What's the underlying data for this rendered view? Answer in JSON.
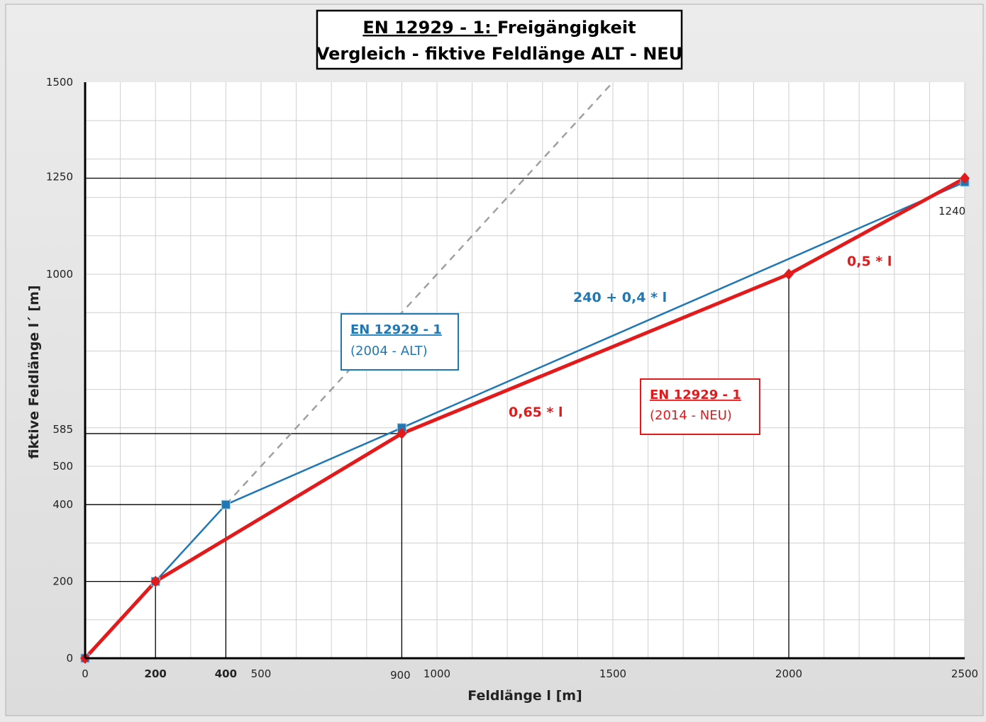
{
  "title_line1_underlined": "EN 12929 - 1: ",
  "title_line1_rest": "Freigängigkeit",
  "title_line2": "Vergleich - fiktive Feldlänge ALT - NEU",
  "chart_data": {
    "type": "line",
    "xlabel": "Feldlänge l [m]",
    "ylabel": "fiktive Feldlänge l´ [m]",
    "xlim": [
      0,
      2500
    ],
    "ylim": [
      0,
      1500
    ],
    "x_ticks": [
      0,
      200,
      400,
      500,
      900,
      1000,
      1500,
      2000,
      2500
    ],
    "y_ticks": [
      0,
      200,
      400,
      500,
      585,
      1000,
      1250,
      1500
    ],
    "grid": true,
    "grid_x_step": 100,
    "grid_y_step": 100,
    "series": [
      {
        "name": "EN 12929 - 1 (2004 - ALT)",
        "color": "#1f77b4",
        "marker": "square",
        "x": [
          0,
          200,
          400,
          900,
          2500
        ],
        "y": [
          0,
          200,
          400,
          600,
          1240
        ]
      },
      {
        "name": "EN 12929 - 1 (2014 - NEU)",
        "color": "#e31a1c",
        "marker": "diamond",
        "x": [
          0,
          200,
          900,
          2000,
          2500
        ],
        "y": [
          0,
          200,
          585,
          1000,
          1250
        ]
      }
    ],
    "identity_line": {
      "style": "dashed",
      "color": "#a0a0a0",
      "x": [
        400,
        1500
      ],
      "y": [
        400,
        1500
      ]
    },
    "reference_lines": [
      {
        "axis": "y",
        "value": 200,
        "to_x": 200
      },
      {
        "axis": "y",
        "value": 400,
        "to_x": 400
      },
      {
        "axis": "y",
        "value": 585,
        "to_x": 900
      },
      {
        "axis": "y",
        "value": 1250,
        "to_x": 2500
      },
      {
        "axis": "x",
        "value": 200,
        "to_y": 200
      },
      {
        "axis": "x",
        "value": 400,
        "to_y": 400
      },
      {
        "axis": "x",
        "value": 900,
        "to_y": 585
      },
      {
        "axis": "x",
        "value": 2000,
        "to_y": 1000
      }
    ],
    "annotations": {
      "alt_formula": "240 + 0,4 * l",
      "neu_formula_1": "0,65 * l",
      "neu_formula_2": "0,5 * l",
      "point_label_1240": "1240"
    },
    "legend_alt": {
      "line1": "EN 12929 - 1",
      "line2": "(2004 - ALT)",
      "color": "#1f77b4"
    },
    "legend_neu": {
      "line1": "EN 12929 - 1",
      "line2": "(2014 - NEU)",
      "color": "#e31a1c"
    }
  }
}
